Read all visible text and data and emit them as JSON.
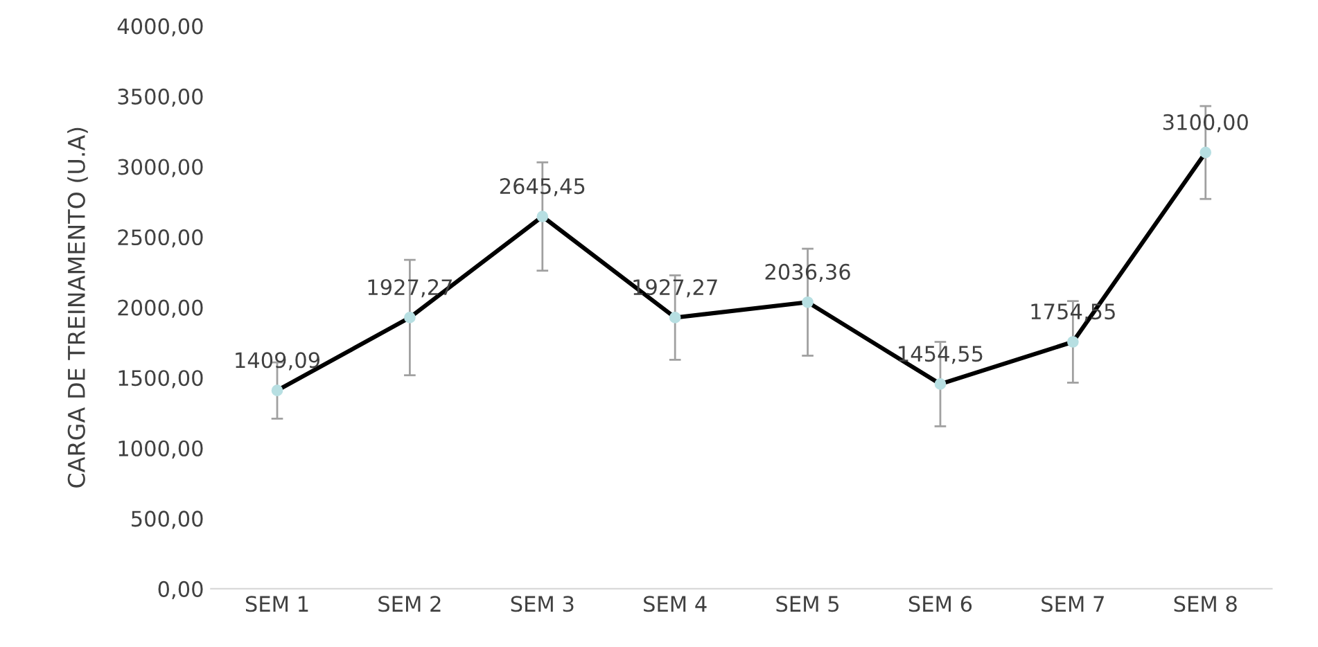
{
  "chart_data": {
    "type": "line",
    "ylabel": "CARGA DE TREINAMENTO (U.A)",
    "categories": [
      "SEM 1",
      "SEM 2",
      "SEM 3",
      "SEM 4",
      "SEM 5",
      "SEM 6",
      "SEM 7",
      "SEM 8"
    ],
    "series": [
      {
        "color": "#000000",
        "values": [
          1409.09,
          1927.27,
          2645.45,
          1927.27,
          2036.36,
          1454.55,
          1754.55,
          3100.0
        ],
        "errors": [
          200,
          410,
          385,
          300,
          380,
          300,
          290,
          330
        ],
        "value_labels": [
          "1409,09",
          "1927,27",
          "2645,45",
          "1927,27",
          "2036,36",
          "1454,55",
          "1754,55",
          "3100,00"
        ]
      }
    ],
    "marker": "circle",
    "line_style": "solid",
    "grid": false,
    "legend": false,
    "ylim": [
      0,
      4000
    ],
    "yticks": [
      {
        "value": 0,
        "label": "0,00"
      },
      {
        "value": 500,
        "label": "500,00"
      },
      {
        "value": 1000,
        "label": "1000,00"
      },
      {
        "value": 1500,
        "label": "1500,00"
      },
      {
        "value": 2000,
        "label": "2000,00"
      },
      {
        "value": 2500,
        "label": "2500,00"
      },
      {
        "value": 3000,
        "label": "3000,00"
      },
      {
        "value": 3500,
        "label": "3500,00"
      },
      {
        "value": 4000,
        "label": "4000,00"
      }
    ]
  }
}
